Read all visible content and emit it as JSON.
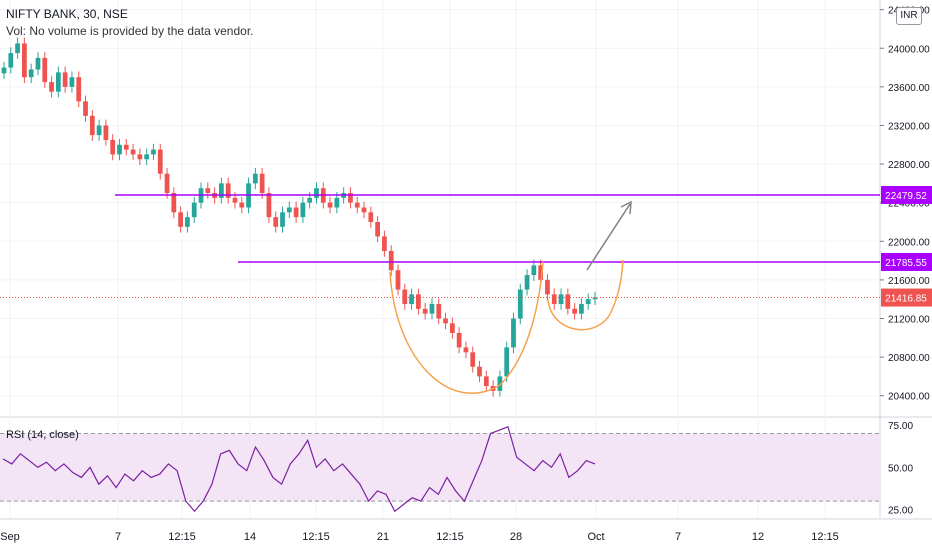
{
  "header": {
    "symbol_line": "NIFTY BANK, 30, NSE",
    "volume_note": "Vol: No volume is provided by the data vendor."
  },
  "price_scale": {
    "unit": "INR",
    "ticks": [
      "24400.00",
      "24000.00",
      "23600.00",
      "23200.00",
      "22800.00",
      "22400.00",
      "22000.00",
      "21600.00",
      "21200.00",
      "20800.00",
      "20400.00"
    ]
  },
  "rsi": {
    "label": "RSI (14, close)",
    "ticks": [
      "75.00",
      "50.00",
      "25.00"
    ]
  },
  "time_axis": {
    "labels": [
      "Sep",
      "7",
      "12:15",
      "14",
      "12:15",
      "21",
      "12:15",
      "28",
      "Oct",
      "7",
      "12",
      "12:15"
    ]
  },
  "colors": {
    "up": "#26a69a",
    "down": "#ef5350",
    "levels": "#aa00ff",
    "current": "#ef5350",
    "cup": "#f7a24b",
    "arrow": "#808080",
    "rsi_line": "#7b1fa2",
    "rsi_band": "#f3e5f5"
  },
  "chart_data": {
    "type": "candlestick",
    "y_unit": "INR",
    "ylim": [
      20200,
      24500
    ],
    "horizontal_levels": [
      {
        "value": 22479.52,
        "label": "22479.52"
      },
      {
        "value": 21785.55,
        "label": "21785.55"
      }
    ],
    "current_price": {
      "value": 21416.85,
      "label": "21416.85"
    },
    "close_series": [
      23800,
      23950,
      24050,
      23700,
      23780,
      23900,
      23650,
      23550,
      23750,
      23600,
      23700,
      23450,
      23300,
      23100,
      23200,
      23050,
      22900,
      23000,
      22950,
      22900,
      22850,
      22900,
      22950,
      22700,
      22500,
      22300,
      22150,
      22250,
      22400,
      22550,
      22500,
      22450,
      22600,
      22450,
      22400,
      22350,
      22600,
      22700,
      22500,
      22250,
      22150,
      22300,
      22350,
      22250,
      22400,
      22450,
      22550,
      22400,
      22350,
      22450,
      22500,
      22400,
      22350,
      22300,
      22200,
      22050,
      21900,
      21700,
      21500,
      21350,
      21450,
      21300,
      21250,
      21350,
      21200,
      21150,
      21050,
      20900,
      20850,
      20700,
      20600,
      20500,
      20450,
      20600,
      20900,
      21200,
      21500,
      21650,
      21750,
      21600,
      21450,
      21350,
      21450,
      21300,
      21250,
      21350,
      21400,
      21416.85
    ],
    "rsi_series": [
      55,
      52,
      58,
      54,
      50,
      53,
      48,
      52,
      47,
      44,
      50,
      40,
      45,
      38,
      46,
      42,
      48,
      44,
      46,
      52,
      48,
      30,
      24,
      30,
      40,
      58,
      60,
      52,
      48,
      62,
      54,
      44,
      40,
      52,
      58,
      66,
      50,
      55,
      48,
      52,
      46,
      40,
      30,
      36,
      34,
      24,
      28,
      32,
      30,
      38,
      34,
      44,
      36,
      30,
      42,
      54,
      70,
      72,
      74,
      56,
      52,
      48,
      54,
      50,
      58,
      44,
      48,
      54,
      52
    ],
    "rsi_levels": [
      70,
      30
    ],
    "rsi_ylim": [
      20,
      78
    ],
    "annotations": [
      "cup-curve",
      "handle-curve",
      "target-arrow"
    ]
  }
}
